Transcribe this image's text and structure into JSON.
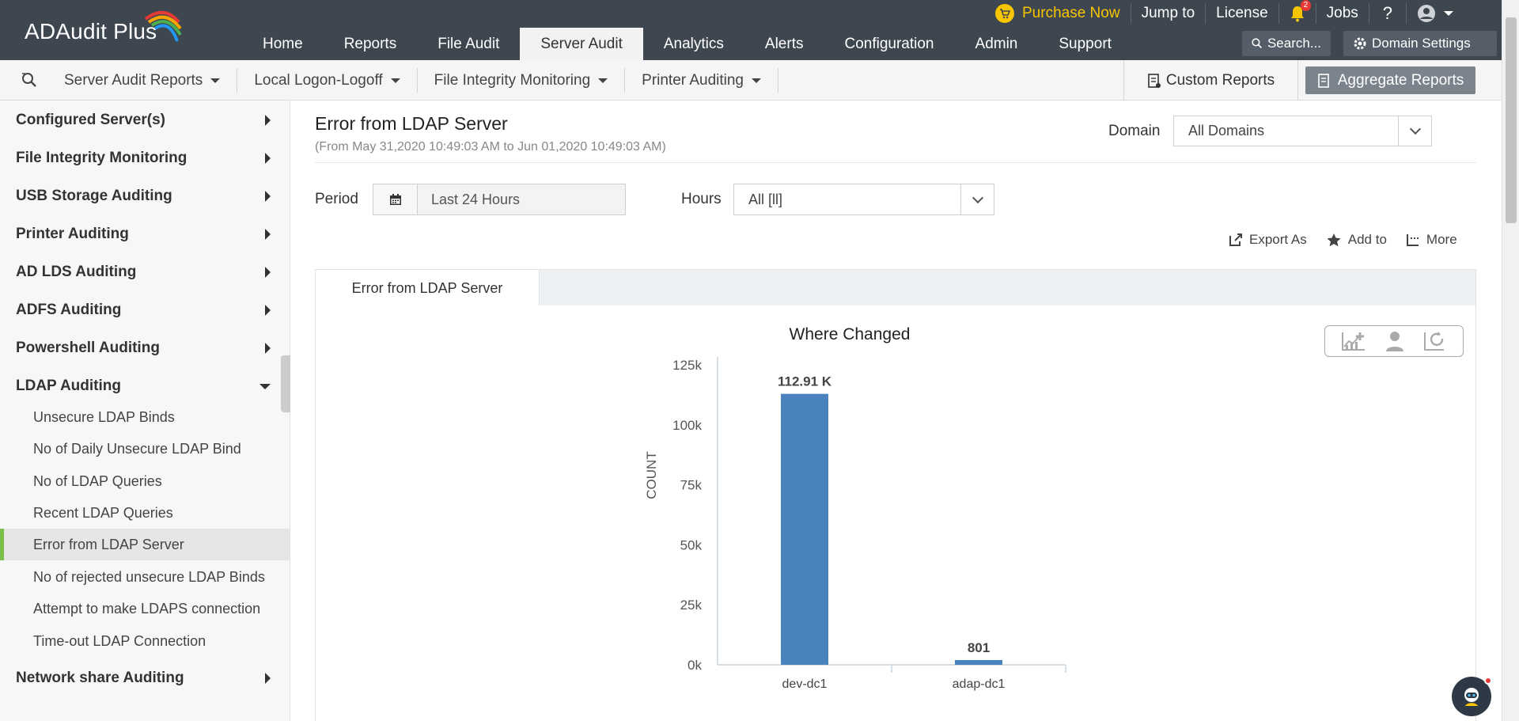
{
  "app": {
    "name": "ADAudit Plus"
  },
  "topbar": {
    "purchase": "Purchase Now",
    "jump_to": "Jump to",
    "license": "License",
    "notifications_count": "2",
    "jobs": "Jobs",
    "help": "?",
    "search": "Search...",
    "domain_settings": "Domain Settings"
  },
  "main_tabs": [
    "Home",
    "Reports",
    "File Audit",
    "Server Audit",
    "Analytics",
    "Alerts",
    "Configuration",
    "Admin",
    "Support"
  ],
  "active_main_tab": "Server Audit",
  "subnav": {
    "items": [
      "Server Audit Reports",
      "Local Logon-Logoff",
      "File Integrity Monitoring",
      "Printer Auditing"
    ],
    "custom_reports": "Custom Reports",
    "aggregate_reports": "Aggregate Reports"
  },
  "sidebar": {
    "groups": [
      "Configured Server(s)",
      "File Integrity Monitoring",
      "USB Storage Auditing",
      "Printer Auditing",
      "AD LDS Auditing",
      "ADFS Auditing",
      "Powershell Auditing",
      "LDAP Auditing"
    ],
    "ldap_items": [
      "Unsecure LDAP Binds",
      "No of Daily Unsecure LDAP Bind",
      "No of LDAP Queries",
      "Recent LDAP Queries",
      "Error from LDAP Server",
      "No of rejected unsecure LDAP Binds",
      "Attempt to make LDAPS connection",
      "Time-out LDAP Connection"
    ],
    "last_group": "Network share Auditing",
    "active_item": "Error from LDAP Server"
  },
  "report": {
    "title": "Error from LDAP Server",
    "range": "(From May 31,2020 10:49:03 AM to Jun 01,2020 10:49:03 AM)",
    "domain_label": "Domain",
    "domain_value": "All Domains",
    "period_label": "Period",
    "period_value": "Last 24 Hours",
    "hours_label": "Hours",
    "hours_value": "All [ll]",
    "export_as": "Export As",
    "add_to": "Add to",
    "more": "More",
    "tab_label": "Error from LDAP Server"
  },
  "colors": {
    "topbar": "#3e4650",
    "bar": "#4a82bd",
    "active_marker": "#7bbf4b",
    "purchase": "#f7c600"
  },
  "chart_data": {
    "type": "bar",
    "title": "Where Changed",
    "ylabel": "COUNT",
    "xlabel": "",
    "categories": [
      "dev-dc1",
      "adap-dc1"
    ],
    "values": [
      112910,
      801
    ],
    "data_labels": [
      "112.91 K",
      "801"
    ],
    "ylim": [
      0,
      125000
    ],
    "yticks": [
      0,
      25000,
      50000,
      75000,
      100000,
      125000
    ],
    "ytick_labels": [
      "0k",
      "25k",
      "50k",
      "75k",
      "100k",
      "125k"
    ],
    "grid": false
  }
}
